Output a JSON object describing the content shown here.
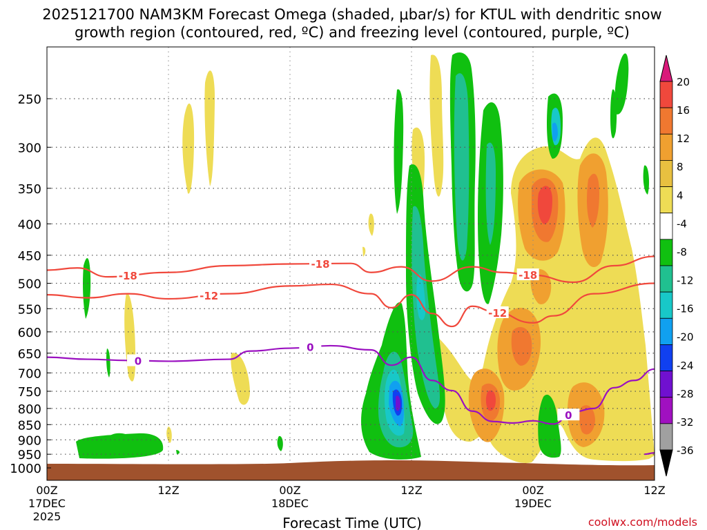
{
  "chart_data": {
    "type": "contour",
    "title_line1": "2025121700 NAM3KM Forecast Omega (shaded, μbar/s) for KTUL with dendritic snow",
    "title_line2": "growth region (contoured, red, ºC) and freezing level (contoured, purple, ºC)",
    "xlabel": "Forecast Time (UTC)",
    "watermark": "coolwx.com/models",
    "x_range_hours": [
      0,
      60
    ],
    "x_ticks": [
      {
        "hour": 0,
        "line1": "00Z",
        "line2": "17DEC",
        "line3": "2025"
      },
      {
        "hour": 12,
        "line1": "12Z",
        "line2": "",
        "line3": ""
      },
      {
        "hour": 24,
        "line1": "00Z",
        "line2": "18DEC",
        "line3": ""
      },
      {
        "hour": 36,
        "line1": "12Z",
        "line2": "",
        "line3": ""
      },
      {
        "hour": 48,
        "line1": "00Z",
        "line2": "19DEC",
        "line3": ""
      },
      {
        "hour": 60,
        "line1": "12Z",
        "line2": "",
        "line3": ""
      }
    ],
    "y_range_hpa": [
      1050,
      200
    ],
    "y_ticks": [
      "250",
      "300",
      "350",
      "400",
      "450",
      "500",
      "550",
      "600",
      "650",
      "700",
      "750",
      "800",
      "850",
      "900",
      "950",
      "1000"
    ],
    "colorbar": {
      "labels": [
        "20",
        "16",
        "12",
        "8",
        "4",
        "-4",
        "-8",
        "-12",
        "-16",
        "-20",
        "-24",
        "-28",
        "-32",
        "-36"
      ],
      "colors": [
        "#d9197a",
        "#f0483c",
        "#f07830",
        "#f0a030",
        "#e8c040",
        "#eedc55",
        "#ffffff",
        "#10c010",
        "#20c090",
        "#18c8c8",
        "#10a0f0",
        "#1040f0",
        "#7010d0",
        "#a010c0",
        "#a0a0a0",
        "#000000"
      ]
    },
    "isotherms": [
      {
        "label": "-18",
        "color": "#f0483c",
        "hours": [
          0,
          3,
          6,
          12,
          18,
          24,
          30,
          32,
          35,
          38,
          42,
          45,
          48,
          52,
          56,
          60
        ],
        "hpa": [
          476,
          472,
          488,
          480,
          468,
          465,
          464,
          480,
          470,
          496,
          470,
          480,
          485,
          498,
          468,
          452
        ]
      },
      {
        "label": "-12",
        "color": "#f0483c",
        "hours": [
          0,
          4,
          8,
          12,
          18,
          24,
          28,
          32,
          34,
          36,
          38,
          40,
          42,
          44,
          48,
          50,
          54,
          60
        ],
        "hpa": [
          522,
          528,
          520,
          530,
          520,
          505,
          502,
          520,
          548,
          522,
          560,
          588,
          545,
          555,
          580,
          565,
          520,
          500
        ]
      },
      {
        "label": "0",
        "color": "#9a10c0",
        "hours": [
          0,
          4,
          8,
          12,
          18,
          20,
          24,
          28,
          32,
          34,
          36,
          38,
          40,
          42,
          44,
          46,
          48,
          50,
          52,
          54,
          56,
          58,
          60
        ],
        "hpa": [
          660,
          665,
          668,
          670,
          665,
          645,
          638,
          632,
          642,
          680,
          660,
          720,
          748,
          808,
          840,
          845,
          838,
          848,
          810,
          800,
          740,
          720,
          690
        ]
      },
      {
        "label": "0",
        "color": "#9a10c0",
        "hours": [
          59,
          60
        ],
        "hpa": [
          950,
          945
        ]
      }
    ],
    "omega_label_hours": {
      "-18": [
        8,
        27,
        47.5
      ],
      "-12": [
        16,
        44.5
      ],
      "0": [
        9,
        26,
        51.5
      ]
    }
  }
}
